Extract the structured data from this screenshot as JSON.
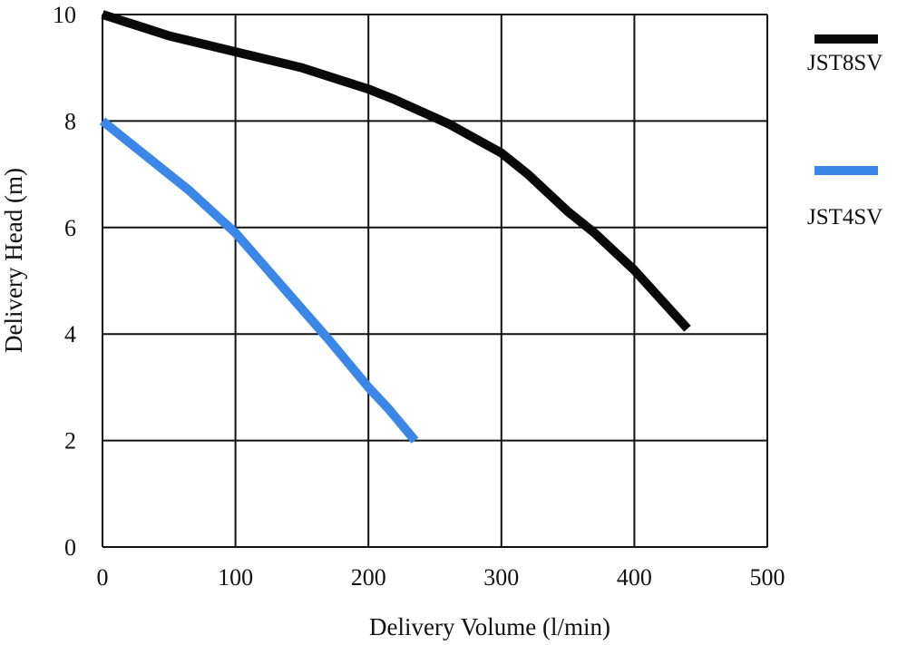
{
  "chart_data": {
    "type": "line",
    "title": "",
    "xlabel": "Delivery Volume (l/min)",
    "ylabel": "Delivery Head (m)",
    "xlim": [
      0,
      500
    ],
    "ylim": [
      0,
      10
    ],
    "x_ticks": [
      "0",
      "100",
      "200",
      "300",
      "400",
      "500"
    ],
    "y_ticks": [
      "0",
      "2",
      "4",
      "6",
      "8",
      "10"
    ],
    "grid": true,
    "legend_position": "right",
    "series": [
      {
        "name": "JST8SV",
        "color": "#0a0a0a",
        "points": [
          [
            0,
            10.0
          ],
          [
            25,
            9.8
          ],
          [
            50,
            9.6
          ],
          [
            100,
            9.3
          ],
          [
            150,
            9.0
          ],
          [
            200,
            8.6
          ],
          [
            220,
            8.4
          ],
          [
            260,
            7.95
          ],
          [
            300,
            7.4
          ],
          [
            320,
            7.0
          ],
          [
            350,
            6.3
          ],
          [
            370,
            5.9
          ],
          [
            400,
            5.2
          ],
          [
            440,
            4.1
          ]
        ]
      },
      {
        "name": "JST4SV",
        "color": "#3a87e8",
        "points": [
          [
            0,
            8.0
          ],
          [
            30,
            7.4
          ],
          [
            65,
            6.7
          ],
          [
            100,
            5.9
          ],
          [
            135,
            4.9
          ],
          [
            170,
            3.9
          ],
          [
            200,
            3.0
          ],
          [
            215,
            2.6
          ],
          [
            235,
            2.0
          ]
        ]
      }
    ]
  }
}
